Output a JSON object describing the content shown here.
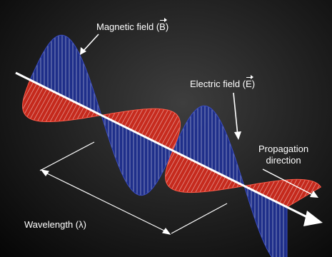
{
  "labels": {
    "magnetic_text": "Magnetic field (",
    "magnetic_symbol": "B",
    "magnetic_close": ")",
    "electric_text": "Electric field (",
    "electric_symbol": "E",
    "electric_close": ")",
    "propagation_line1": "Propagation",
    "propagation_line2": "direction",
    "wavelength": "Wavelength (λ)"
  },
  "colors": {
    "background": "#1e1e1e",
    "magnetic_wave": "#1f2f8f",
    "electric_wave": "#d42a1c",
    "axis": "#ffffff",
    "stripes": "#ffffff"
  }
}
